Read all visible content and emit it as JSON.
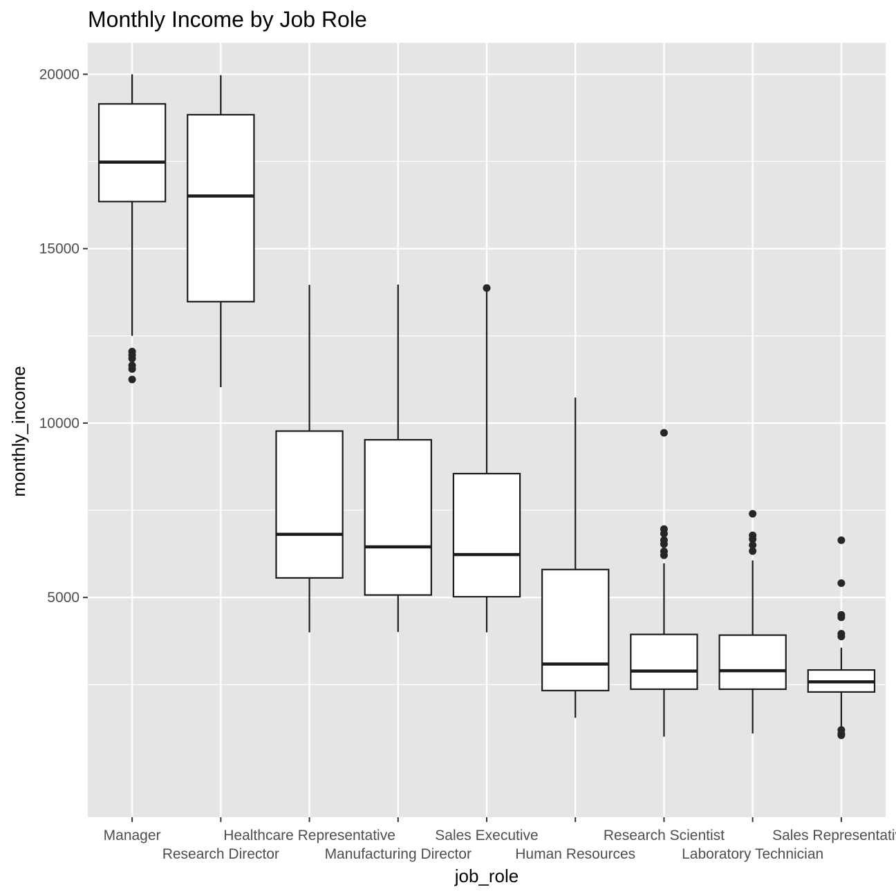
{
  "chart_data": {
    "type": "boxplot",
    "title": "Monthly Income by Job Role",
    "xlabel": "job_role",
    "ylabel": "monthly_income",
    "ylim": [
      -1300,
      20900
    ],
    "yticks": [
      5000,
      10000,
      15000,
      20000
    ],
    "y_minor_ticks": [
      2500,
      7500,
      12500,
      17500
    ],
    "grid": true,
    "colors": {
      "panel": "#e5e5e5",
      "grid": "#ffffff",
      "box_fill": "#ffffff",
      "box_stroke": "#1a1a1a",
      "outlier": "#262626",
      "tick_text": "#4d4d4d"
    },
    "categories": [
      "Manager",
      "Research Director",
      "Healthcare Representative",
      "Manufacturing Director",
      "Sales Executive",
      "Human Resources",
      "Research Scientist",
      "Laboratory Technician",
      "Sales Representative"
    ],
    "boxes": [
      {
        "category": "Manager",
        "whisker_low": 12500,
        "q1": 16350,
        "median": 17480,
        "q3": 19150,
        "whisker_high": 19999,
        "outliers": [
          12050,
          11950,
          11850,
          11650,
          11550,
          11250
        ]
      },
      {
        "category": "Research Director",
        "whisker_low": 11030,
        "q1": 13480,
        "median": 16510,
        "q3": 18840,
        "whisker_high": 19973,
        "outliers": []
      },
      {
        "category": "Healthcare Representative",
        "whisker_low": 4000,
        "q1": 5560,
        "median": 6810,
        "q3": 9770,
        "whisker_high": 13960,
        "outliers": []
      },
      {
        "category": "Manufacturing Director",
        "whisker_low": 4010,
        "q1": 5070,
        "median": 6450,
        "q3": 9520,
        "whisker_high": 13970,
        "outliers": []
      },
      {
        "category": "Sales Executive",
        "whisker_low": 4000,
        "q1": 5020,
        "median": 6230,
        "q3": 8550,
        "whisker_high": 13870,
        "outliers": [
          13870
        ]
      },
      {
        "category": "Human Resources",
        "whisker_low": 1550,
        "q1": 2330,
        "median": 3090,
        "q3": 5800,
        "whisker_high": 10730,
        "outliers": []
      },
      {
        "category": "Research Scientist",
        "whisker_low": 1010,
        "q1": 2370,
        "median": 2890,
        "q3": 3940,
        "whisker_high": 5980,
        "outliers": [
          9720,
          6960,
          6830,
          6640,
          6530,
          6320,
          6210
        ]
      },
      {
        "category": "Laboratory Technician",
        "whisker_low": 1100,
        "q1": 2370,
        "median": 2900,
        "q3": 3920,
        "whisker_high": 6060,
        "outliers": [
          7400,
          6780,
          6670,
          6500,
          6330
        ]
      },
      {
        "category": "Sales Representative",
        "whisker_low": 1220,
        "q1": 2290,
        "median": 2580,
        "q3": 2920,
        "whisker_high": 3560,
        "outliers": [
          6640,
          5410,
          4500,
          4430,
          3960,
          3880,
          1200,
          1090,
          1050
        ]
      }
    ]
  }
}
